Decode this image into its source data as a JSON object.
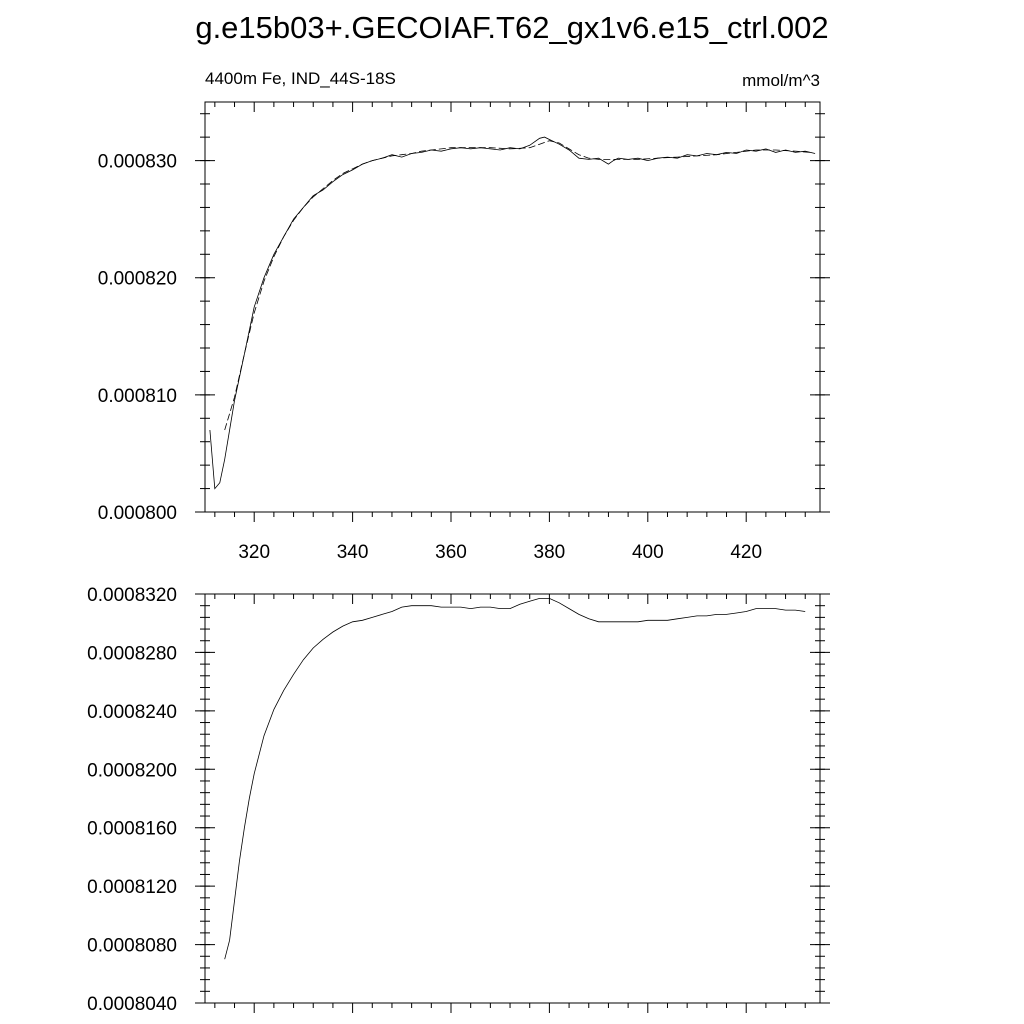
{
  "figure": {
    "title": "g.e15b03+.GECOIAF.T62_gx1v6.e15_ctrl.002"
  },
  "chart_data": [
    {
      "type": "line",
      "subtitle_left": "4400m Fe, IND_44S-18S",
      "subtitle_right": "mmol/m^3",
      "xlim": [
        310,
        435
      ],
      "ylim": [
        0.0008,
        0.000835
      ],
      "xticks": [
        320,
        340,
        360,
        380,
        400,
        420
      ],
      "xtick_labels": [
        "320",
        "340",
        "360",
        "380",
        "400",
        "420"
      ],
      "yticks": [
        0.0008,
        0.00081,
        0.00082,
        0.00083
      ],
      "ytick_labels": [
        "0.000800",
        "0.000810",
        "0.000820",
        "0.000830"
      ],
      "grid": false,
      "series": [
        {
          "style": "solid",
          "x": [
            311,
            312,
            313,
            314,
            315,
            316,
            318,
            320,
            322,
            324,
            326,
            328,
            330,
            332,
            334,
            336,
            338,
            340,
            342,
            344,
            346,
            348,
            350,
            352,
            354,
            356,
            358,
            360,
            362,
            364,
            366,
            368,
            370,
            372,
            374,
            376,
            378,
            379,
            380,
            382,
            384,
            386,
            388,
            390,
            392,
            393,
            394,
            396,
            398,
            400,
            402,
            404,
            406,
            408,
            410,
            412,
            414,
            416,
            418,
            420,
            422,
            424,
            426,
            428,
            430,
            432,
            434
          ],
          "y": [
            0.000807,
            0.000802,
            0.0008025,
            0.0008045,
            0.000807,
            0.0008095,
            0.0008135,
            0.0008175,
            0.00082,
            0.000822,
            0.0008235,
            0.000825,
            0.000826,
            0.000827,
            0.0008275,
            0.0008282,
            0.0008288,
            0.0008292,
            0.0008297,
            0.00083,
            0.0008302,
            0.0008305,
            0.0008303,
            0.0008306,
            0.0008307,
            0.0008309,
            0.0008308,
            0.000831,
            0.0008311,
            0.000831,
            0.0008311,
            0.000831,
            0.0008309,
            0.0008311,
            0.000831,
            0.0008313,
            0.0008319,
            0.000832,
            0.0008318,
            0.0008314,
            0.0008309,
            0.0008302,
            0.0008301,
            0.0008302,
            0.0008297,
            0.00083,
            0.0008302,
            0.0008301,
            0.0008302,
            0.00083,
            0.0008302,
            0.0008303,
            0.0008302,
            0.0008305,
            0.0008304,
            0.0008306,
            0.0008305,
            0.0008307,
            0.0008306,
            0.0008309,
            0.0008308,
            0.000831,
            0.0008307,
            0.0008309,
            0.0008307,
            0.0008308,
            0.0008306
          ]
        },
        {
          "style": "dashed",
          "x": [
            314,
            316,
            318,
            320,
            322,
            324,
            326,
            328,
            330,
            332,
            334,
            336,
            338,
            340,
            342,
            344,
            346,
            348,
            350,
            352,
            354,
            356,
            358,
            360,
            364,
            368,
            372,
            376,
            378,
            380,
            382,
            384,
            386,
            388,
            390,
            394,
            398,
            402,
            406,
            410,
            414,
            418,
            422,
            426,
            430,
            433
          ],
          "y": [
            0.000807,
            0.0008098,
            0.0008135,
            0.000817,
            0.0008197,
            0.0008218,
            0.0008235,
            0.0008249,
            0.000826,
            0.0008269,
            0.0008276,
            0.0008283,
            0.0008289,
            0.0008293,
            0.0008297,
            0.00083,
            0.0008302,
            0.0008304,
            0.0008305,
            0.0008306,
            0.0008308,
            0.0008309,
            0.000831,
            0.0008311,
            0.0008311,
            0.0008311,
            0.000831,
            0.0008311,
            0.0008314,
            0.0008317,
            0.0008315,
            0.000831,
            0.0008305,
            0.0008302,
            0.0008301,
            0.0008301,
            0.0008301,
            0.0008302,
            0.0008303,
            0.0008304,
            0.0008305,
            0.0008307,
            0.0008309,
            0.0008309,
            0.0008308,
            0.0008307
          ]
        }
      ]
    },
    {
      "type": "line",
      "xlim": [
        310,
        435
      ],
      "ylim": [
        0.000804,
        0.000832
      ],
      "xticks": [
        320,
        340,
        360,
        380,
        400,
        420
      ],
      "yticks": [
        0.000804,
        0.000808,
        0.000812,
        0.000816,
        0.00082,
        0.000824,
        0.000828,
        0.000832
      ],
      "ytick_labels": [
        "0.0008040",
        "0.0008080",
        "0.0008120",
        "0.0008160",
        "0.0008200",
        "0.0008240",
        "0.0008280",
        "0.0008320"
      ],
      "grid": false,
      "series": [
        {
          "style": "solid",
          "x": [
            314,
            315,
            316,
            317,
            318,
            319,
            320,
            322,
            324,
            326,
            328,
            330,
            332,
            334,
            336,
            338,
            340,
            342,
            344,
            346,
            348,
            350,
            352,
            354,
            356,
            358,
            360,
            362,
            364,
            366,
            368,
            370,
            372,
            374,
            376,
            378,
            380,
            382,
            384,
            386,
            388,
            390,
            392,
            394,
            396,
            398,
            400,
            402,
            404,
            406,
            408,
            410,
            412,
            414,
            416,
            418,
            420,
            422,
            424,
            426,
            428,
            430,
            432
          ],
          "y": [
            0.000807,
            0.0008083,
            0.000811,
            0.0008137,
            0.000816,
            0.000818,
            0.0008197,
            0.0008223,
            0.0008241,
            0.0008254,
            0.0008265,
            0.0008275,
            0.0008283,
            0.0008289,
            0.0008294,
            0.0008298,
            0.0008301,
            0.0008302,
            0.0008304,
            0.0008306,
            0.0008308,
            0.0008311,
            0.0008312,
            0.0008312,
            0.0008312,
            0.0008311,
            0.0008311,
            0.0008311,
            0.000831,
            0.0008311,
            0.0008311,
            0.000831,
            0.000831,
            0.0008313,
            0.0008315,
            0.0008317,
            0.0008317,
            0.0008314,
            0.000831,
            0.0008306,
            0.0008303,
            0.0008301,
            0.0008301,
            0.0008301,
            0.0008301,
            0.0008301,
            0.0008302,
            0.0008302,
            0.0008302,
            0.0008303,
            0.0008304,
            0.0008305,
            0.0008305,
            0.0008306,
            0.0008306,
            0.0008307,
            0.0008308,
            0.000831,
            0.000831,
            0.000831,
            0.0008309,
            0.0008309,
            0.0008308
          ]
        }
      ]
    }
  ]
}
